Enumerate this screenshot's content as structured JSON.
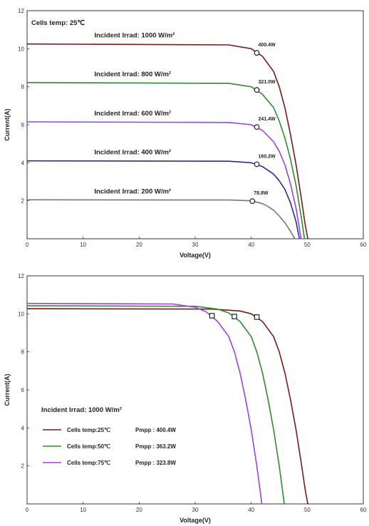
{
  "chart_data": [
    {
      "type": "line",
      "title": "",
      "xlabel": "Voltage(V)",
      "ylabel": "Current(A)",
      "xlim": [
        0,
        60
      ],
      "ylim": [
        0,
        12
      ],
      "xticks": [
        "0",
        "10",
        "20",
        "30",
        "40",
        "50",
        "60"
      ],
      "yticks": [
        "2",
        "4",
        "6",
        "8",
        "10",
        "12"
      ],
      "grid": false,
      "note": "Cells temp:  25℃",
      "series": [
        {
          "name": "Incident Irrad:  1000 W/m²",
          "color": "#7a1a1a",
          "x": [
            0,
            36,
            40,
            42,
            44,
            45,
            46,
            47,
            48,
            49,
            49.6,
            50.1
          ],
          "y": [
            10.25,
            10.2,
            10.0,
            9.6,
            8.8,
            8.0,
            6.9,
            5.5,
            3.9,
            2.0,
            0.8,
            0
          ],
          "mpp": {
            "x": 41.0,
            "y": 9.78,
            "label": "400.4W"
          }
        },
        {
          "name": "Incident Irrad:  800 W/m²",
          "color": "#2e8b2e",
          "x": [
            0,
            36,
            40,
            42,
            44,
            45,
            46,
            47,
            48,
            49,
            49.5
          ],
          "y": [
            8.22,
            8.18,
            8.0,
            7.6,
            6.9,
            6.2,
            5.3,
            4.2,
            2.8,
            1.0,
            0
          ],
          "mpp": {
            "x": 41.0,
            "y": 7.83,
            "label": "321.0W"
          }
        },
        {
          "name": "Incident Irrad:  600 W/m²",
          "color": "#a040e0",
          "x": [
            0,
            36,
            40,
            42,
            44,
            45,
            46,
            47,
            48,
            48.9
          ],
          "y": [
            6.15,
            6.12,
            6.0,
            5.7,
            5.1,
            4.6,
            3.9,
            2.9,
            1.6,
            0
          ],
          "mpp": {
            "x": 41.0,
            "y": 5.88,
            "label": "241.4W"
          }
        },
        {
          "name": "Incident Irrad:  400 W/m²",
          "color": "#2a2aa0",
          "x": [
            0,
            36,
            40,
            42,
            44,
            45,
            46,
            47,
            48,
            48.6
          ],
          "y": [
            4.1,
            4.08,
            4.0,
            3.8,
            3.4,
            3.05,
            2.6,
            1.9,
            0.9,
            0
          ],
          "mpp": {
            "x": 41.0,
            "y": 3.92,
            "label": "160.2W"
          }
        },
        {
          "name": "Incident Irrad:  200 W/m²",
          "color": "#777777",
          "x": [
            0,
            36,
            40,
            42,
            43,
            44,
            45,
            46,
            47,
            47.8
          ],
          "y": [
            2.05,
            2.04,
            2.0,
            1.85,
            1.7,
            1.5,
            1.2,
            0.85,
            0.4,
            0
          ],
          "mpp": {
            "x": 40.2,
            "y": 1.98,
            "label": "78.8W"
          }
        }
      ]
    },
    {
      "type": "line",
      "title": "",
      "xlabel": "Voltage(V)",
      "ylabel": "Current(A)",
      "xlim": [
        0,
        60
      ],
      "ylim": [
        0,
        12
      ],
      "xticks": [
        "0",
        "10",
        "20",
        "30",
        "40",
        "50",
        "60"
      ],
      "yticks": [
        "2",
        "4",
        "6",
        "8",
        "10",
        "12"
      ],
      "grid": false,
      "note": "Incident Irrad:  1000 W/m²",
      "legend_position": "bottom-left",
      "series": [
        {
          "name": "Cells temp:25℃",
          "pmpp": "Pmpp :  400.4W",
          "color": "#7a1a1a",
          "x": [
            0,
            33,
            38,
            40,
            42,
            44,
            45,
            46,
            47,
            48,
            49,
            49.6,
            50.1
          ],
          "y": [
            10.27,
            10.25,
            10.15,
            10.0,
            9.6,
            8.8,
            8.0,
            6.9,
            5.5,
            3.9,
            2.0,
            0.8,
            0
          ],
          "mpp": {
            "x": 41.0,
            "y": 9.83
          }
        },
        {
          "name": "Cells temp:50℃",
          "pmpp": "Pmpp :  363.2W",
          "color": "#2e8b2e",
          "x": [
            0,
            30,
            34,
            36,
            38,
            40,
            41,
            42,
            43,
            44,
            45,
            45.9
          ],
          "y": [
            10.42,
            10.4,
            10.25,
            10.05,
            9.6,
            8.8,
            8.0,
            6.9,
            5.5,
            3.9,
            2.0,
            0
          ],
          "mpp": {
            "x": 37.0,
            "y": 9.86
          }
        },
        {
          "name": "Cells temp:75℃",
          "pmpp": "Pmpp :  323.8W",
          "color": "#a040e0",
          "x": [
            0,
            26,
            30,
            32,
            34,
            36,
            37,
            38,
            39,
            40,
            41,
            41.9
          ],
          "y": [
            10.55,
            10.52,
            10.35,
            10.1,
            9.6,
            8.8,
            8.0,
            6.9,
            5.5,
            3.9,
            2.0,
            0
          ],
          "mpp": {
            "x": 33.0,
            "y": 9.9
          }
        }
      ]
    }
  ]
}
